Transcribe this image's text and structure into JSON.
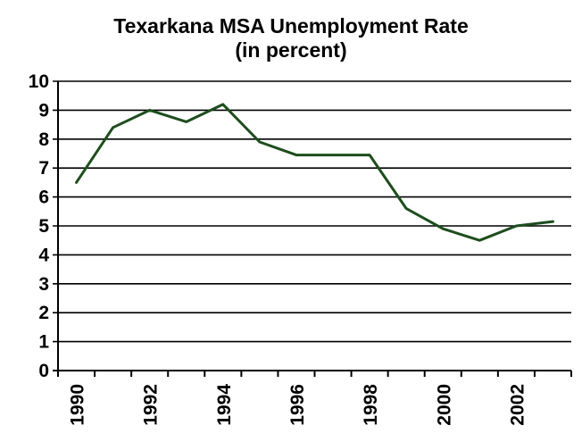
{
  "chart_data": {
    "type": "line",
    "title": "Texarkana MSA Unemployment Rate",
    "subtitle": "(in percent)",
    "xlabel": "",
    "ylabel": "",
    "ylim": [
      0,
      10
    ],
    "yticks": [
      "0",
      "1",
      "2",
      "3",
      "4",
      "5",
      "6",
      "7",
      "8",
      "9",
      "10"
    ],
    "xtick_labels": [
      "1990",
      "1992",
      "1994",
      "1996",
      "1998",
      "2000",
      "2002"
    ],
    "grid": true,
    "legend": "none",
    "line_color": "#1e4d1e",
    "x": [
      1990,
      1991,
      1992,
      1993,
      1994,
      1995,
      1996,
      1997,
      1998,
      1999,
      2000,
      2001,
      2002,
      2003
    ],
    "series": [
      {
        "values": [
          6.5,
          8.4,
          9.0,
          8.6,
          9.2,
          7.9,
          7.45,
          7.45,
          7.45,
          5.6,
          4.9,
          4.5,
          5.0,
          5.15
        ]
      }
    ]
  }
}
